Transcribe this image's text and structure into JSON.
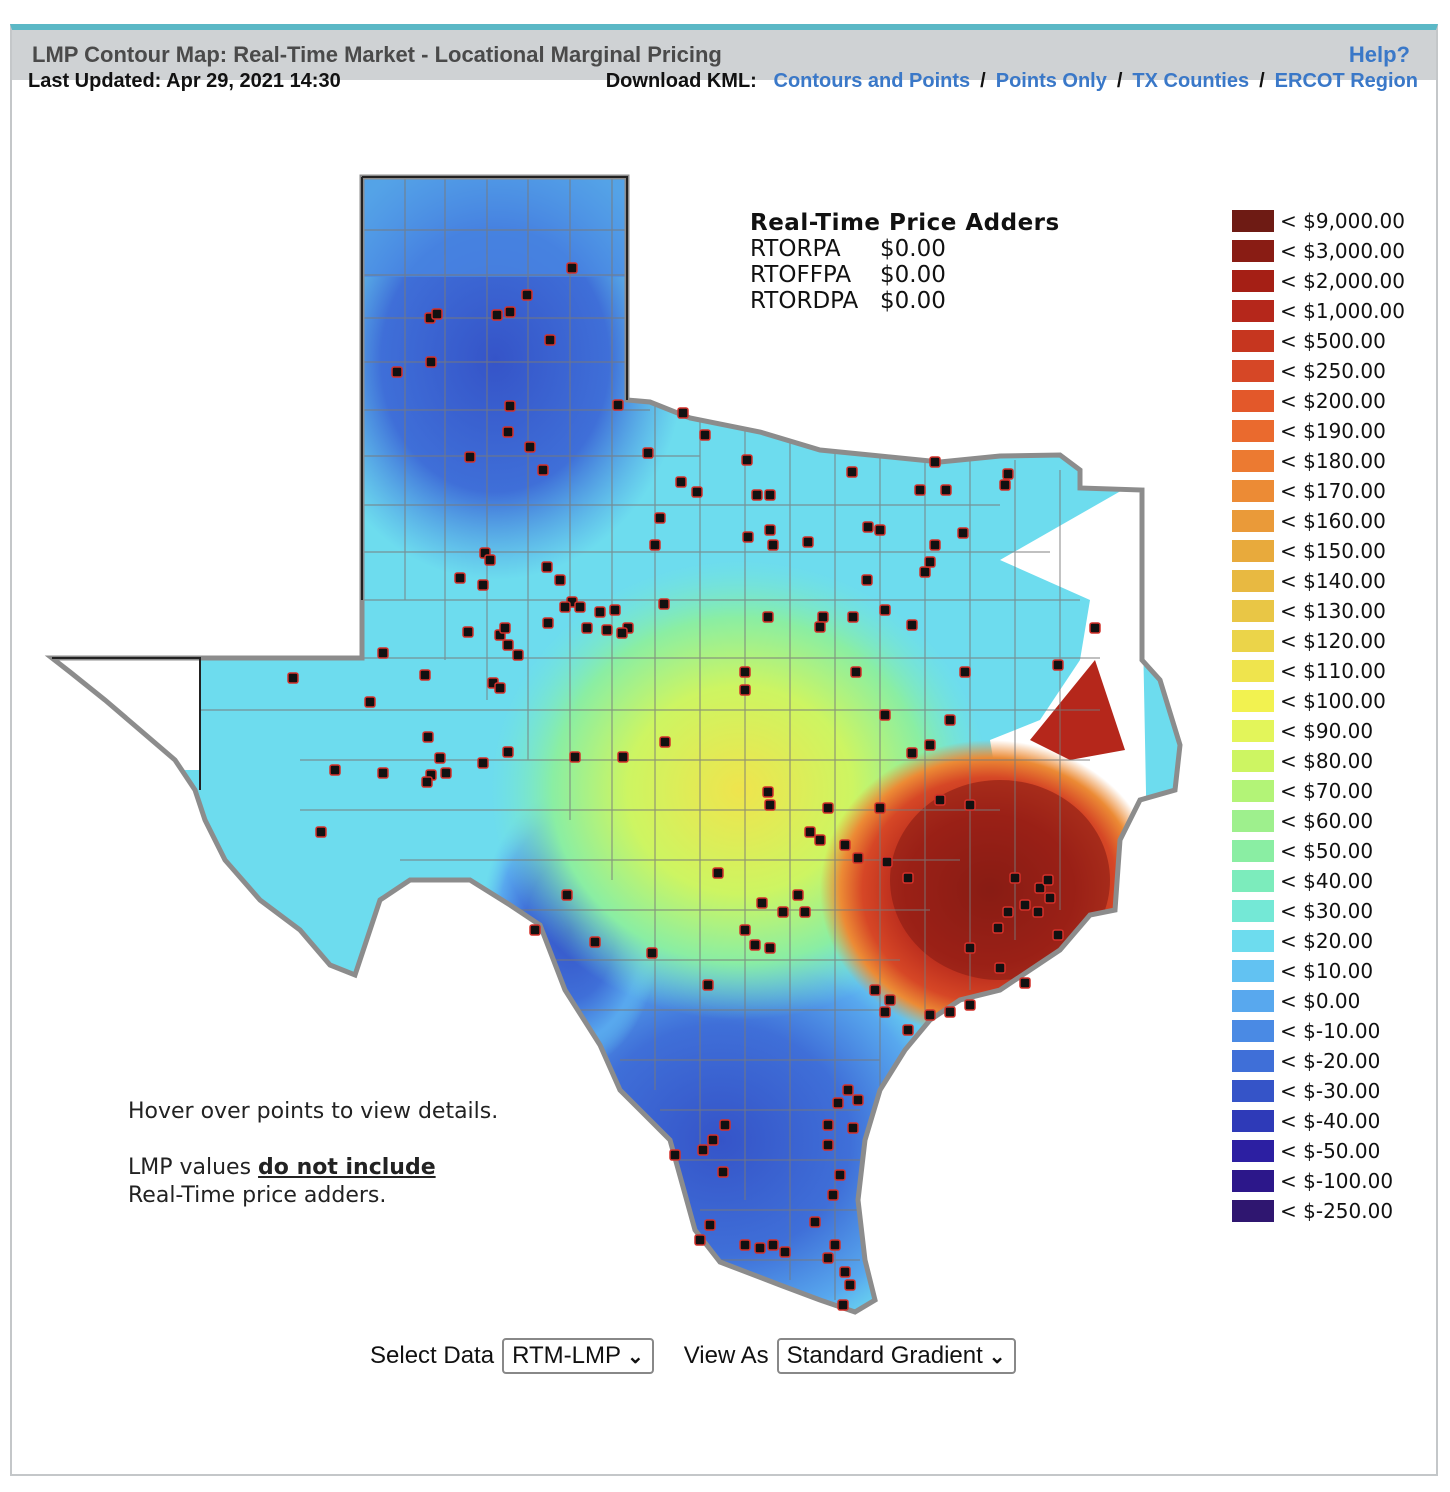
{
  "header": {
    "title": "LMP Contour Map: Real-Time Market - Locational Marginal Pricing",
    "help": "Help?"
  },
  "updated": "Last Updated: Apr 29, 2021 14:30",
  "download": {
    "label": "Download KML:",
    "links": [
      "Contours and Points",
      "Points Only",
      "TX Counties",
      "ERCOT Region"
    ],
    "separator": "/"
  },
  "adders": {
    "title": "Real-Time Price Adders",
    "rows": [
      {
        "name": "RTORPA",
        "value": "$0.00"
      },
      {
        "name": "RTOFFPA",
        "value": "$0.00"
      },
      {
        "name": "RTORDPA",
        "value": "$0.00"
      }
    ]
  },
  "legend": {
    "prefix": "<",
    "items": [
      {
        "label": "$9,000.00",
        "color": "#6e1b14"
      },
      {
        "label": "$3,000.00",
        "color": "#891c14"
      },
      {
        "label": "$2,000.00",
        "color": "#a51f15"
      },
      {
        "label": "$1,000.00",
        "color": "#b5271b"
      },
      {
        "label": "$500.00",
        "color": "#c6361f"
      },
      {
        "label": "$250.00",
        "color": "#d64726"
      },
      {
        "label": "$200.00",
        "color": "#e3582a"
      },
      {
        "label": "$190.00",
        "color": "#ea6a2e"
      },
      {
        "label": "$180.00",
        "color": "#ec7a31"
      },
      {
        "label": "$170.00",
        "color": "#ec8b35"
      },
      {
        "label": "$160.00",
        "color": "#ea9a39"
      },
      {
        "label": "$150.00",
        "color": "#e8aa3c"
      },
      {
        "label": "$140.00",
        "color": "#e8b941"
      },
      {
        "label": "$130.00",
        "color": "#e9c645"
      },
      {
        "label": "$120.00",
        "color": "#ebd449"
      },
      {
        "label": "$110.00",
        "color": "#efe44d"
      },
      {
        "label": "$100.00",
        "color": "#f2f250"
      },
      {
        "label": "$90.00",
        "color": "#e3f55a"
      },
      {
        "label": "$80.00",
        "color": "#cdf562"
      },
      {
        "label": "$70.00",
        "color": "#b3f477"
      },
      {
        "label": "$60.00",
        "color": "#9ef08d"
      },
      {
        "label": "$50.00",
        "color": "#8aeea3"
      },
      {
        "label": "$40.00",
        "color": "#7cecbc"
      },
      {
        "label": "$30.00",
        "color": "#74e8d6"
      },
      {
        "label": "$20.00",
        "color": "#6ddcee"
      },
      {
        "label": "$10.00",
        "color": "#62c2f2"
      },
      {
        "label": "$0.00",
        "color": "#58a8ee"
      },
      {
        "label": "$-10.00",
        "color": "#4a8ae4"
      },
      {
        "label": "$-20.00",
        "color": "#3f6fd8"
      },
      {
        "label": "$-30.00",
        "color": "#3554c8"
      },
      {
        "label": "$-40.00",
        "color": "#2e3ab8"
      },
      {
        "label": "$-50.00",
        "color": "#2c1fa2"
      },
      {
        "label": "$-100.00",
        "color": "#2c178a"
      },
      {
        "label": "$-250.00",
        "color": "#2f1670"
      }
    ]
  },
  "notes": {
    "line1": "Hover over points to view details.",
    "line2a": "LMP values ",
    "line2b": "do not include",
    "line3": "Real-Time price adders."
  },
  "controls": {
    "select_data_label": "Select Data",
    "select_data_value": "RTM-LMP",
    "view_as_label": "View As",
    "view_as_value": "Standard Gradient"
  }
}
